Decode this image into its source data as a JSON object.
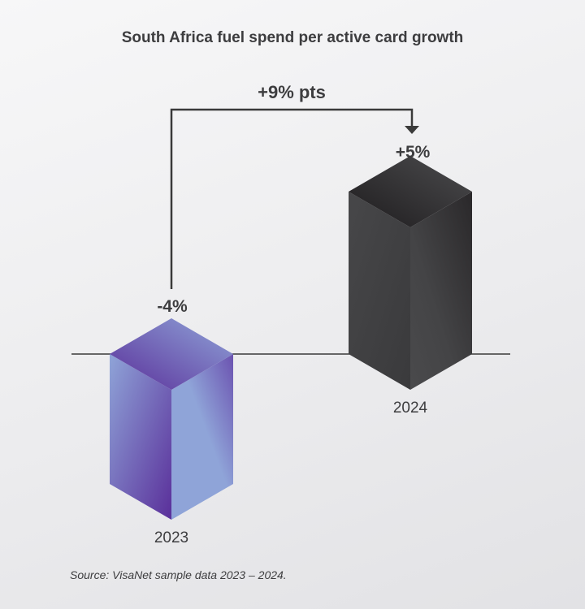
{
  "chart_data": {
    "type": "bar",
    "title": "South Africa fuel spend per active card growth",
    "categories": [
      "2023",
      "2024"
    ],
    "values": [
      -4,
      5
    ],
    "value_labels": [
      "-4%",
      "+5%"
    ],
    "unit": "%",
    "annotation": "+9% pts",
    "colors": {
      "bar_2023_light": "#8fa4d8",
      "bar_2023_dark": "#6a3fa3",
      "bar_2024_light": "#4a4a4c",
      "bar_2024_dark": "#1e1c1e",
      "baseline": "#3a3a3a",
      "text": "#3d3d3f"
    },
    "grid": false,
    "legend": "none"
  },
  "source": "Source: VisaNet sample data 2023 – 2024."
}
